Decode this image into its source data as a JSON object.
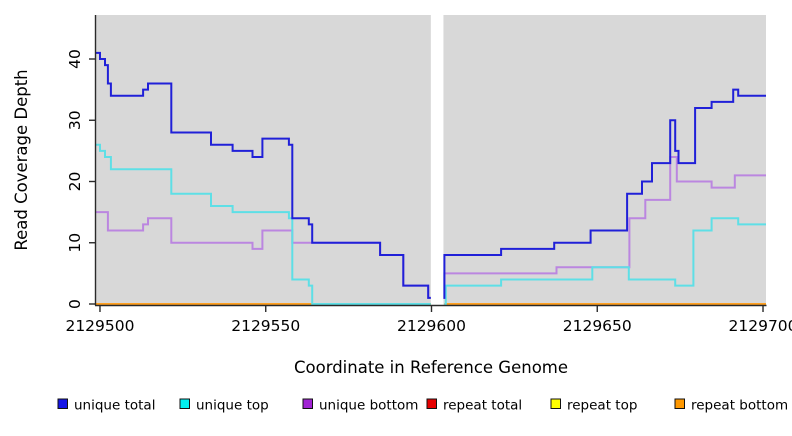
{
  "axes": {
    "x_title": "Coordinate in Reference Genome",
    "y_title": "Read Coverage Depth",
    "x_ticks": [
      2129500,
      2129550,
      2129600,
      2129650,
      2129700
    ],
    "x_tick_labels": [
      "2129500",
      "2129550",
      "2129600",
      "2129650",
      "2129700"
    ],
    "y_ticks": [
      0,
      10,
      20,
      30,
      40
    ],
    "y_tick_labels": [
      "0",
      "10",
      "20",
      "30",
      "40"
    ]
  },
  "legend": [
    {
      "label": "unique total",
      "color": "#1515e6"
    },
    {
      "label": "unique top",
      "color": "#00eeee"
    },
    {
      "label": "unique bottom",
      "color": "#a123d4"
    },
    {
      "label": "repeat total",
      "color": "#e60000"
    },
    {
      "label": "repeat top",
      "color": "#ffff00"
    },
    {
      "label": "repeat bottom",
      "color": "#ff9800"
    }
  ],
  "colors": {
    "plot_background": "#d8d8d8",
    "gap_band": "#ffffff",
    "axis": "#2a2a2a"
  },
  "chart_data": {
    "type": "line",
    "style": "step",
    "title": "",
    "xlabel": "Coordinate in Reference Genome",
    "ylabel": "Read Coverage Depth",
    "xlim": [
      2129498.8,
      2129700.9
    ],
    "ylim": [
      0,
      47
    ],
    "grid": false,
    "legend_position": "bottom",
    "gap": {
      "x_start": 2129599.8,
      "x_end": 2129603.6
    },
    "series": [
      {
        "name": "repeat total",
        "color": "#dd0000",
        "segments": [
          {
            "points": [
              [
                2129498.8,
                0
              ]
            ],
            "end": 2129599.8
          },
          {
            "points": [
              [
                2129603.9,
                0
              ]
            ],
            "end": 2129700.9
          }
        ]
      },
      {
        "name": "repeat top",
        "color": "#ffff00",
        "segments": [
          {
            "points": [
              [
                2129498.8,
                0
              ]
            ],
            "end": 2129599.8
          },
          {
            "points": [
              [
                2129603.9,
                0
              ]
            ],
            "end": 2129700.9
          }
        ]
      },
      {
        "name": "repeat bottom",
        "color": "#ffa021",
        "segments": [
          {
            "points": [
              [
                2129498.8,
                0
              ]
            ],
            "end": 2129599.8
          },
          {
            "points": [
              [
                2129603.9,
                0
              ]
            ],
            "end": 2129700.9
          }
        ]
      },
      {
        "name": "unique bottom",
        "color": "#bb86e0",
        "segments": [
          {
            "points": [
              [
                2129498.8,
                15
              ],
              [
                2129502.4,
                12
              ],
              [
                2129513,
                13
              ],
              [
                2129514.5,
                14
              ],
              [
                2129521.5,
                10
              ],
              [
                2129546,
                9
              ],
              [
                2129549,
                12
              ],
              [
                2129558,
                10
              ],
              [
                2129584.5,
                8
              ],
              [
                2129591.5,
                3
              ],
              [
                2129599,
                1
              ]
            ],
            "end": 2129599.8
          },
          {
            "points": [
              [
                2129603.6,
                1
              ],
              [
                2129603.9,
                5
              ],
              [
                2129637.7,
                6
              ],
              [
                2129659.7,
                14
              ],
              [
                2129664.5,
                17
              ],
              [
                2129672,
                24
              ],
              [
                2129674,
                20
              ],
              [
                2129684.5,
                19
              ],
              [
                2129691.5,
                21
              ]
            ],
            "end": 2129700.9
          }
        ]
      },
      {
        "name": "unique top",
        "color": "#5edfe6",
        "segments": [
          {
            "points": [
              [
                2129498.8,
                26
              ],
              [
                2129500,
                25
              ],
              [
                2129501.5,
                24
              ],
              [
                2129503.3,
                22
              ],
              [
                2129521.5,
                18
              ],
              [
                2129533.5,
                16
              ],
              [
                2129540,
                15
              ],
              [
                2129557,
                14
              ],
              [
                2129558,
                4
              ],
              [
                2129563,
                3
              ],
              [
                2129564,
                0
              ]
            ],
            "end": 2129599.8
          },
          {
            "points": [
              [
                2129603.9,
                0
              ],
              [
                2129604.3,
                3
              ],
              [
                2129621,
                4
              ],
              [
                2129648.5,
                6
              ],
              [
                2129659.5,
                4
              ],
              [
                2129673.5,
                3
              ],
              [
                2129679,
                12
              ],
              [
                2129684.5,
                14
              ],
              [
                2129692.5,
                13
              ]
            ],
            "end": 2129700.9
          }
        ]
      },
      {
        "name": "unique total",
        "color": "#2020d8",
        "segments": [
          {
            "points": [
              [
                2129498.8,
                41
              ],
              [
                2129500,
                40
              ],
              [
                2129501.5,
                39
              ],
              [
                2129502.4,
                36
              ],
              [
                2129503.3,
                34
              ],
              [
                2129513,
                35
              ],
              [
                2129514.5,
                36
              ],
              [
                2129521.5,
                28
              ],
              [
                2129533.5,
                26
              ],
              [
                2129540,
                25
              ],
              [
                2129546,
                24
              ],
              [
                2129549,
                27
              ],
              [
                2129557,
                26
              ],
              [
                2129558,
                14
              ],
              [
                2129563,
                13
              ],
              [
                2129564,
                10
              ],
              [
                2129584.5,
                8
              ],
              [
                2129591.5,
                3
              ],
              [
                2129599,
                1
              ]
            ],
            "end": 2129599.8
          },
          {
            "points": [
              [
                2129603.6,
                1
              ],
              [
                2129603.9,
                8
              ],
              [
                2129621,
                9
              ],
              [
                2129637,
                10
              ],
              [
                2129648,
                12
              ],
              [
                2129659,
                18
              ],
              [
                2129663.5,
                20
              ],
              [
                2129666.5,
                23
              ],
              [
                2129672,
                30
              ],
              [
                2129673.5,
                25
              ],
              [
                2129674.5,
                23
              ],
              [
                2129679.5,
                32
              ],
              [
                2129684.5,
                33
              ],
              [
                2129691,
                35
              ],
              [
                2129692.5,
                34
              ]
            ],
            "end": 2129700.9
          }
        ]
      }
    ]
  }
}
